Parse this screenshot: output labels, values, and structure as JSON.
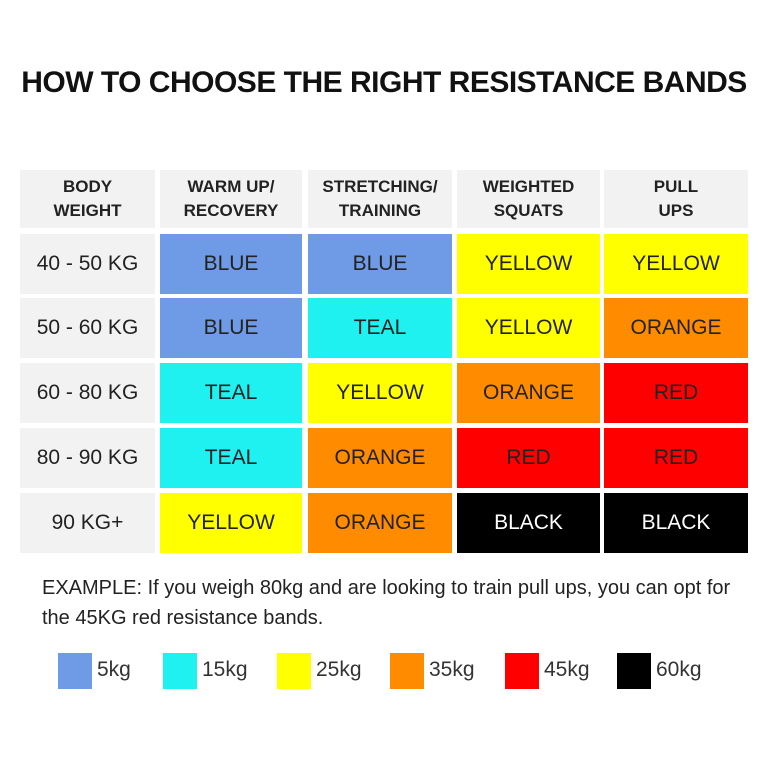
{
  "title": "HOW TO CHOOSE THE RIGHT RESISTANCE BANDS",
  "table": {
    "header": [
      [
        "BODY",
        "WEIGHT"
      ],
      [
        "WARM UP/",
        "RECOVERY"
      ],
      [
        "STRETCHING/",
        "TRAINING"
      ],
      [
        "WEIGHTED",
        "SQUATS"
      ],
      [
        "PULL",
        "UPS"
      ]
    ],
    "rows": [
      {
        "weight": "40 - 50 KG",
        "cells": [
          {
            "text": "BLUE",
            "color": "#6f9be6"
          },
          {
            "text": "BLUE",
            "color": "#6f9be6"
          },
          {
            "text": "YELLOW",
            "color": "#ffff00"
          },
          {
            "text": "YELLOW",
            "color": "#ffff00"
          }
        ]
      },
      {
        "weight": "50 - 60 KG",
        "cells": [
          {
            "text": "BLUE",
            "color": "#6f9be6"
          },
          {
            "text": "TEAL",
            "color": "#1ff0f0"
          },
          {
            "text": "YELLOW",
            "color": "#ffff00"
          },
          {
            "text": "ORANGE",
            "color": "#ff8c00"
          }
        ]
      },
      {
        "weight": "60 - 80 KG",
        "cells": [
          {
            "text": "TEAL",
            "color": "#1ff0f0"
          },
          {
            "text": "YELLOW",
            "color": "#ffff00"
          },
          {
            "text": "ORANGE",
            "color": "#ff8c00"
          },
          {
            "text": "RED",
            "color": "#ff0000"
          }
        ]
      },
      {
        "weight": "80 - 90 KG",
        "cells": [
          {
            "text": "TEAL",
            "color": "#1ff0f0"
          },
          {
            "text": "ORANGE",
            "color": "#ff8c00"
          },
          {
            "text": "RED",
            "color": "#ff0000"
          },
          {
            "text": "RED",
            "color": "#ff0000"
          }
        ]
      },
      {
        "weight": "90 KG+",
        "cells": [
          {
            "text": "YELLOW",
            "color": "#ffff00"
          },
          {
            "text": "ORANGE",
            "color": "#ff8c00"
          },
          {
            "text": "BLACK",
            "color": "#000000"
          },
          {
            "text": "BLACK",
            "color": "#000000"
          }
        ]
      }
    ]
  },
  "example": "EXAMPLE: If you weigh 80kg and are looking to train pull ups, you can opt for the 45KG red resistance bands.",
  "legend": [
    {
      "label": "5kg",
      "color": "#6f9be6"
    },
    {
      "label": "15kg",
      "color": "#1ff0f0"
    },
    {
      "label": "25kg",
      "color": "#ffff00"
    },
    {
      "label": "35kg",
      "color": "#ff8c00"
    },
    {
      "label": "45kg",
      "color": "#ff0000"
    },
    {
      "label": "60kg",
      "color": "#000000"
    }
  ]
}
